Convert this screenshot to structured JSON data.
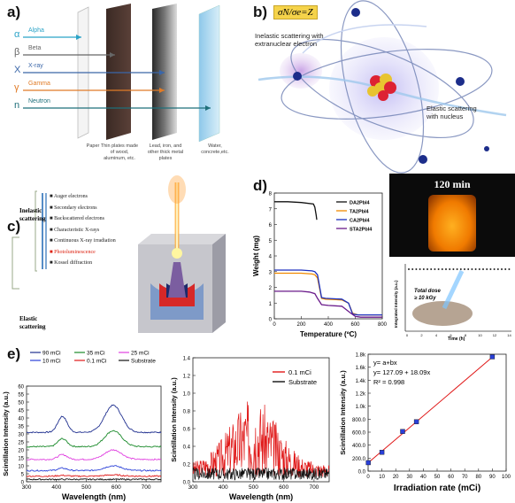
{
  "panel_labels": {
    "a": "a)",
    "b": "b)",
    "c": "c)",
    "d": "d)",
    "e": "e)"
  },
  "panel_a": {
    "rays": [
      {
        "symbol": "α",
        "name": "Alpha",
        "color": "#2aa3c7"
      },
      {
        "symbol": "β",
        "name": "Beta",
        "color": "#666666"
      },
      {
        "symbol": "X",
        "name": "X-ray",
        "color": "#3a66a8"
      },
      {
        "symbol": "γ",
        "name": "Gamma",
        "color": "#e07b27"
      },
      {
        "symbol": "n",
        "name": "Neutron",
        "color": "#1f6f7a"
      }
    ],
    "barriers": [
      "Paper",
      "Thin plates made of wood, aluminum, etc.",
      "Lead, iron, and other thick metal plates",
      "Water, concrete,etc."
    ]
  },
  "panel_b": {
    "formula": "σN/σe=Z",
    "inelastic_label": "Inelastic scattering with extranuclear electron",
    "elastic_label": "Elastic scattering with nucleus"
  },
  "panel_c": {
    "inelastic": "Inelastic scattering",
    "elastic": "Elastic scattering",
    "items": [
      "Auger electrons",
      "Secondary electrons",
      "Backscattered electrons",
      "Characteristic X-rays",
      "Continuous X-ray irradiation",
      "Photoluminescence",
      "Kossel diffraction"
    ]
  },
  "panel_d": {
    "photo_label": "120 min",
    "inset_text": [
      "Total dose",
      "≥ 10 kGy"
    ],
    "inset_ylabel": "Integrated Intensity (a.u.)",
    "inset_xlabel": "Time (h)",
    "inset_xticks": [
      "0",
      "2",
      "4",
      "6",
      "8",
      "10",
      "12",
      "14"
    ]
  },
  "chart_data": [
    {
      "id": "tga",
      "type": "line",
      "xlabel": "Temperature (ºC)",
      "ylabel": "Weight (mg)",
      "xlim": [
        0,
        800
      ],
      "ylim": [
        0,
        8
      ],
      "xticks": [
        0,
        200,
        400,
        600,
        800
      ],
      "yticks": [
        0,
        1,
        2,
        3,
        4,
        5,
        6,
        7,
        8
      ],
      "series": [
        {
          "name": "DA2PbI4",
          "color": "#111111",
          "x": [
            0,
            100,
            200,
            290,
            300,
            310,
            315
          ],
          "y": [
            7.45,
            7.45,
            7.4,
            7.3,
            7.1,
            6.6,
            6.3
          ]
        },
        {
          "name": "TA2PbI4",
          "color": "#f08a00",
          "x": [
            0,
            200,
            280,
            300,
            320,
            350,
            380,
            500,
            550,
            580,
            620,
            700,
            800
          ],
          "y": [
            2.9,
            2.9,
            2.85,
            2.8,
            2.6,
            1.3,
            1.25,
            1.2,
            1.0,
            0.35,
            0.25,
            0.25,
            0.25
          ]
        },
        {
          "name": "CA2PbI4",
          "color": "#1a2fbf",
          "x": [
            0,
            200,
            280,
            300,
            320,
            350,
            380,
            500,
            550,
            580,
            620,
            700,
            800
          ],
          "y": [
            3.1,
            3.1,
            3.05,
            3.0,
            2.8,
            1.35,
            1.3,
            1.25,
            1.0,
            0.3,
            0.25,
            0.25,
            0.25
          ]
        },
        {
          "name": "STA2PbI4",
          "color": "#6a1a8a",
          "x": [
            0,
            200,
            260,
            300,
            320,
            350,
            400,
            500,
            560,
            600,
            640,
            700,
            800
          ],
          "y": [
            1.75,
            1.75,
            1.7,
            1.6,
            1.3,
            0.9,
            0.85,
            0.8,
            0.4,
            0.15,
            0.1,
            0.1,
            0.1
          ]
        }
      ]
    },
    {
      "id": "spectra",
      "type": "line",
      "xlabel": "Wavelength (nm)",
      "ylabel": "Scintillation Intensity (a.u.)",
      "xlim": [
        300,
        750
      ],
      "ylim": [
        0,
        60
      ],
      "xticks": [
        300,
        400,
        500,
        600,
        700
      ],
      "yticks": [
        0,
        5,
        10,
        15,
        20,
        25,
        30,
        35,
        40,
        45,
        50,
        55,
        60
      ],
      "series": [
        {
          "name": "90 mCi",
          "color": "#1f2f8f",
          "baseline": 31,
          "peak1": 10,
          "peak2": 17
        },
        {
          "name": "35 mCi",
          "color": "#1a8a2a",
          "baseline": 22,
          "peak1": 5,
          "peak2": 10
        },
        {
          "name": "25 mCi",
          "color": "#e040e0",
          "baseline": 14,
          "peak1": 3,
          "peak2": 6
        },
        {
          "name": "10 mCi",
          "color": "#2a40d8",
          "baseline": 7,
          "peak1": 1.5,
          "peak2": 3
        },
        {
          "name": "0.1 mCi",
          "color": "#e01818",
          "baseline": 3.5,
          "peak1": 0.5,
          "peak2": 0.8
        },
        {
          "name": "Substrate",
          "color": "#111111",
          "baseline": 1.5,
          "peak1": 0,
          "peak2": 0
        }
      ]
    },
    {
      "id": "lowdose",
      "type": "line",
      "xlabel": "Wavelength (nm)",
      "ylabel": "Scintillation Intensity (a.u.)",
      "xlim": [
        300,
        750
      ],
      "ylim": [
        0,
        1.4
      ],
      "xticks": [
        300,
        400,
        500,
        600,
        700
      ],
      "yticks": [
        0.0,
        0.2,
        0.4,
        0.6,
        0.8,
        1.0,
        1.2,
        1.4
      ],
      "series": [
        {
          "name": "0.1 mCi",
          "color": "#e01818"
        },
        {
          "name": "Substrate",
          "color": "#111111"
        }
      ]
    },
    {
      "id": "linear",
      "type": "scatter",
      "xlabel": "Irradiation rate (mCi)",
      "ylabel": "Scintillation Intensity (a.u.)",
      "xlim": [
        0,
        100
      ],
      "ylim": [
        0,
        1800
      ],
      "xticks": [
        0,
        10,
        20,
        30,
        40,
        50,
        60,
        70,
        80,
        90,
        100
      ],
      "yticks": [
        "0.0",
        "200.0",
        "400.0",
        "600.0",
        "800.0",
        "1.0k",
        "1.2k",
        "1.4k",
        "1.6k",
        "1.8k"
      ],
      "x": [
        0.1,
        10,
        25,
        35,
        90
      ],
      "y": [
        130,
        290,
        610,
        760,
        1760
      ],
      "fit": {
        "intercept": 127.09,
        "slope": 18.09
      },
      "equation_lines": [
        "y= a+bx",
        "y= 127.09 + 18.09x",
        "R² = 0.998"
      ]
    }
  ]
}
